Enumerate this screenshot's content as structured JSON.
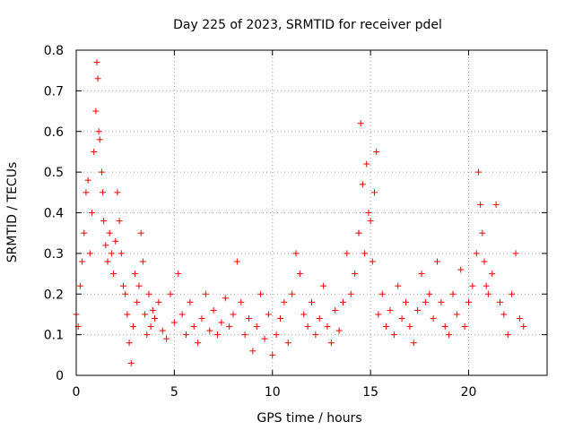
{
  "chart_data": {
    "type": "scatter",
    "title": "Day 225 of 2023, SRMTID for receiver pdel",
    "xlabel": "GPS time / hours",
    "ylabel": "SRMTID / TECUs",
    "xlim": [
      0,
      24
    ],
    "ylim": [
      0,
      0.8
    ],
    "xticks": [
      0,
      5,
      10,
      15,
      20
    ],
    "xtick_labels": [
      "0",
      "5",
      "10",
      "15",
      "20"
    ],
    "yticks": [
      0,
      0.1,
      0.2,
      0.3,
      0.4,
      0.5,
      0.6,
      0.7,
      0.8
    ],
    "ytick_labels": [
      "0",
      "0.1",
      "0.2",
      "0.3",
      "0.4",
      "0.5",
      "0.6",
      "0.7",
      "0.8"
    ],
    "grid": true,
    "marker": "plus",
    "color": "#ff0000",
    "series": [
      {
        "name": "SRMTID",
        "x": [
          0.0,
          0.1,
          0.2,
          0.3,
          0.4,
          0.5,
          0.6,
          0.7,
          0.8,
          0.9,
          1.0,
          1.05,
          1.1,
          1.15,
          1.2,
          1.3,
          1.35,
          1.4,
          1.5,
          1.6,
          1.7,
          1.8,
          1.9,
          2.0,
          2.1,
          2.2,
          2.3,
          2.4,
          2.5,
          2.6,
          2.7,
          2.8,
          2.9,
          3.0,
          3.1,
          3.2,
          3.3,
          3.4,
          3.5,
          3.6,
          3.7,
          3.8,
          3.9,
          4.0,
          4.2,
          4.4,
          4.6,
          4.8,
          5.0,
          5.2,
          5.4,
          5.6,
          5.8,
          6.0,
          6.2,
          6.4,
          6.6,
          6.8,
          7.0,
          7.2,
          7.4,
          7.6,
          7.8,
          8.0,
          8.2,
          8.4,
          8.6,
          8.8,
          9.0,
          9.2,
          9.4,
          9.6,
          9.8,
          10.0,
          10.2,
          10.4,
          10.6,
          10.8,
          11.0,
          11.2,
          11.4,
          11.6,
          11.8,
          12.0,
          12.2,
          12.4,
          12.6,
          12.8,
          13.0,
          13.2,
          13.4,
          13.6,
          13.8,
          14.0,
          14.2,
          14.4,
          14.5,
          14.6,
          14.7,
          14.8,
          14.9,
          15.0,
          15.1,
          15.2,
          15.3,
          15.4,
          15.6,
          15.8,
          16.0,
          16.2,
          16.4,
          16.6,
          16.8,
          17.0,
          17.2,
          17.4,
          17.6,
          17.8,
          18.0,
          18.2,
          18.4,
          18.6,
          18.8,
          19.0,
          19.2,
          19.4,
          19.6,
          19.8,
          20.0,
          20.2,
          20.4,
          20.5,
          20.6,
          20.7,
          20.8,
          20.9,
          21.0,
          21.2,
          21.4,
          21.6,
          21.8,
          22.0,
          22.2,
          22.4,
          22.6,
          22.8
        ],
        "values": [
          0.15,
          0.12,
          0.22,
          0.28,
          0.35,
          0.45,
          0.48,
          0.3,
          0.4,
          0.55,
          0.65,
          0.77,
          0.73,
          0.6,
          0.58,
          0.5,
          0.45,
          0.38,
          0.32,
          0.28,
          0.35,
          0.3,
          0.25,
          0.33,
          0.45,
          0.38,
          0.3,
          0.22,
          0.2,
          0.15,
          0.08,
          0.03,
          0.12,
          0.25,
          0.18,
          0.22,
          0.35,
          0.28,
          0.15,
          0.1,
          0.2,
          0.12,
          0.16,
          0.14,
          0.18,
          0.11,
          0.09,
          0.2,
          0.13,
          0.25,
          0.15,
          0.1,
          0.18,
          0.12,
          0.08,
          0.14,
          0.2,
          0.11,
          0.16,
          0.1,
          0.13,
          0.19,
          0.12,
          0.15,
          0.28,
          0.18,
          0.1,
          0.14,
          0.06,
          0.12,
          0.2,
          0.09,
          0.15,
          0.05,
          0.1,
          0.14,
          0.18,
          0.08,
          0.2,
          0.3,
          0.25,
          0.15,
          0.12,
          0.18,
          0.1,
          0.14,
          0.22,
          0.12,
          0.08,
          0.16,
          0.11,
          0.18,
          0.3,
          0.2,
          0.25,
          0.35,
          0.62,
          0.47,
          0.3,
          0.52,
          0.4,
          0.38,
          0.28,
          0.45,
          0.55,
          0.15,
          0.2,
          0.12,
          0.16,
          0.1,
          0.22,
          0.14,
          0.18,
          0.12,
          0.08,
          0.16,
          0.25,
          0.18,
          0.2,
          0.14,
          0.28,
          0.18,
          0.12,
          0.1,
          0.2,
          0.15,
          0.26,
          0.12,
          0.18,
          0.22,
          0.3,
          0.5,
          0.42,
          0.35,
          0.28,
          0.22,
          0.2,
          0.25,
          0.42,
          0.18,
          0.15,
          0.1,
          0.2,
          0.3,
          0.14,
          0.12
        ]
      }
    ]
  }
}
